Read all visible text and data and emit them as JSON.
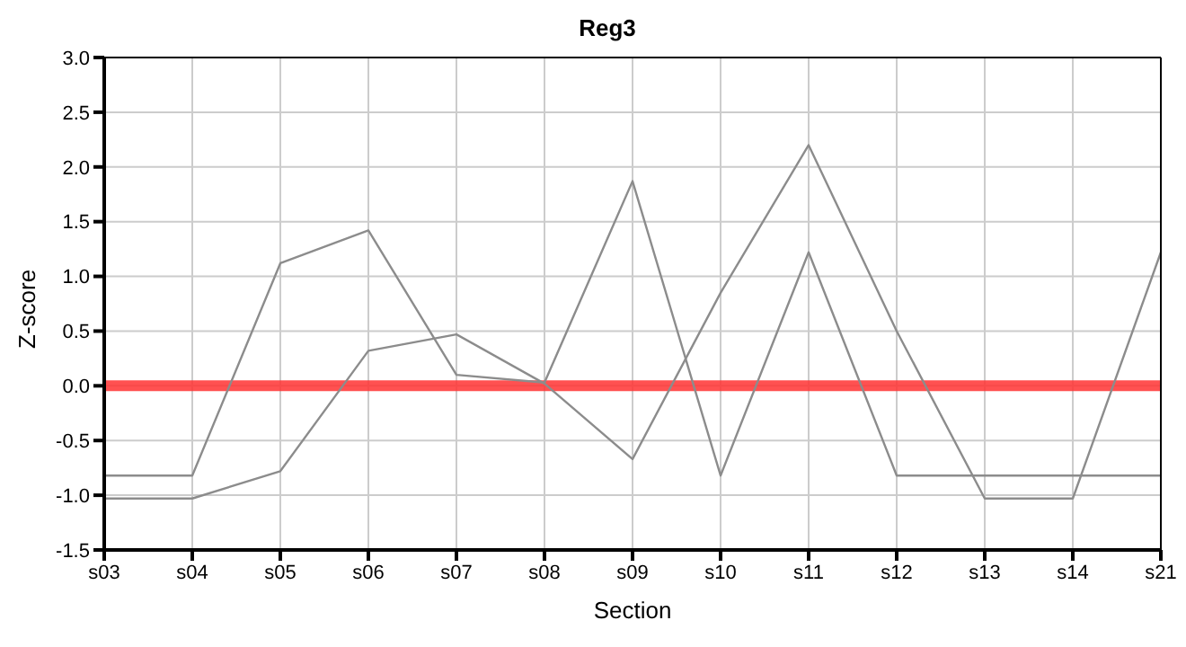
{
  "chart_data": {
    "type": "line",
    "title": "Reg3",
    "xlabel": "Section",
    "ylabel": "Z-score",
    "categories": [
      "s03",
      "s04",
      "s05",
      "s06",
      "s07",
      "s08",
      "s09",
      "s10",
      "s11",
      "s12",
      "s13",
      "s14",
      "s21"
    ],
    "series": [
      {
        "color": "#8c8c8c",
        "values": [
          -0.82,
          -0.82,
          1.12,
          1.42,
          0.1,
          0.03,
          1.87,
          -0.82,
          1.22,
          -0.82,
          -0.82,
          -0.82,
          -0.82
        ]
      },
      {
        "color": "#8c8c8c",
        "values": [
          -1.03,
          -1.03,
          -0.78,
          0.32,
          0.47,
          0.02,
          -0.67,
          0.85,
          2.2,
          0.5,
          -1.03,
          -1.03,
          1.22
        ]
      }
    ],
    "ylim": [
      -1.5,
      3.0
    ],
    "yticks": [
      {
        "value": -1.5,
        "label": "-1.5"
      },
      {
        "value": -1.0,
        "label": "-1.0"
      },
      {
        "value": -0.5,
        "label": "-0.5"
      },
      {
        "value": 0.0,
        "label": "0.0"
      },
      {
        "value": 0.5,
        "label": "0.5"
      },
      {
        "value": 1.0,
        "label": "1.0"
      },
      {
        "value": 1.5,
        "label": "1.5"
      },
      {
        "value": 2.0,
        "label": "2.0"
      },
      {
        "value": 2.5,
        "label": "2.5"
      },
      {
        "value": 3.0,
        "label": "3.0"
      }
    ],
    "ref_lines": [
      {
        "axis": "y",
        "value": 0,
        "color": "#ff3333"
      }
    ],
    "grid": true,
    "marker": "none",
    "line_style": "solid"
  }
}
